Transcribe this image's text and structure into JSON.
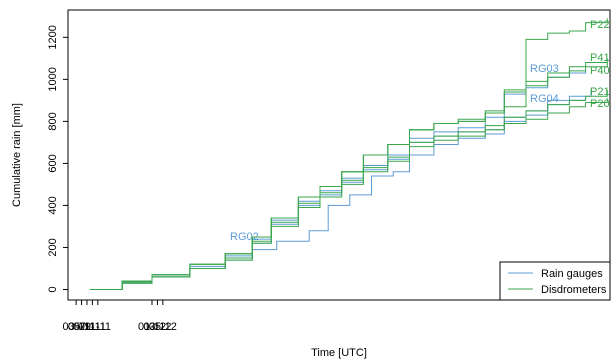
{
  "chart_data": {
    "type": "line",
    "xlabel": "Time [UTC]",
    "ylabel": "Cumulative rain [mm]",
    "x_ticks": [
      "03-11",
      "05-11",
      "07-11",
      "09-11",
      "11-11",
      "01-12",
      "03-12",
      "05-12"
    ],
    "y_ticks": [
      0,
      200,
      400,
      600,
      800,
      1000,
      1200
    ],
    "xlim": [
      "2020-10-31",
      "2021-05-19"
    ],
    "ylim": [
      -50,
      1330
    ],
    "grid": false,
    "legend_position": "bottom-right",
    "legend": [
      {
        "label": "Rain gauges",
        "color": "#5b9bd5"
      },
      {
        "label": "Disdrometers",
        "color": "#3aa64c"
      }
    ],
    "colors": {
      "rain_gauges": "#5b9bd5",
      "disdrometers": "#3aa64c"
    },
    "series": [
      {
        "name": "RG02",
        "group": "rain_gauges",
        "labeled_at": [
          230,
          240
        ],
        "points": [
          [
            "2020-11-08",
            0
          ],
          [
            "2020-11-20",
            30
          ],
          [
            "2020-12-01",
            60
          ],
          [
            "2020-12-15",
            100
          ],
          [
            "2020-12-28",
            140
          ],
          [
            "2021-01-07",
            190
          ],
          [
            "2021-01-16",
            230
          ],
          [
            "2021-01-28",
            280
          ],
          [
            "2021-02-04",
            400
          ],
          [
            "2021-02-12",
            450
          ],
          [
            "2021-02-20",
            540
          ],
          [
            "2021-02-28",
            560
          ],
          [
            "2021-03-06",
            640
          ],
          [
            "2021-03-15",
            690
          ],
          [
            "2021-03-24",
            720
          ],
          [
            "2021-04-03",
            740
          ],
          [
            "2021-04-10",
            800
          ],
          [
            "2021-04-18",
            830
          ],
          [
            "2021-04-26",
            900
          ],
          [
            "2021-05-04",
            920
          ],
          [
            "2021-05-12",
            950
          ]
        ]
      },
      {
        "name": "RG03",
        "group": "rain_gauges",
        "labeled_at": [
          530,
          72
        ],
        "points": [
          [
            "2020-11-08",
            0
          ],
          [
            "2020-11-20",
            40
          ],
          [
            "2020-12-01",
            70
          ],
          [
            "2020-12-15",
            110
          ],
          [
            "2020-12-28",
            160
          ],
          [
            "2021-01-07",
            240
          ],
          [
            "2021-01-14",
            330
          ],
          [
            "2021-01-24",
            420
          ],
          [
            "2021-02-01",
            470
          ],
          [
            "2021-02-09",
            530
          ],
          [
            "2021-02-17",
            590
          ],
          [
            "2021-02-26",
            640
          ],
          [
            "2021-03-06",
            720
          ],
          [
            "2021-03-15",
            750
          ],
          [
            "2021-03-24",
            770
          ],
          [
            "2021-04-03",
            820
          ],
          [
            "2021-04-10",
            930
          ],
          [
            "2021-04-18",
            960
          ],
          [
            "2021-04-26",
            1010
          ],
          [
            "2021-05-04",
            1030
          ],
          [
            "2021-05-10",
            1040
          ]
        ]
      },
      {
        "name": "RG04",
        "group": "rain_gauges",
        "labeled_at": [
          530,
          102
        ],
        "points": [
          [
            "2020-11-08",
            0
          ],
          [
            "2020-11-20",
            35
          ],
          [
            "2020-12-01",
            60
          ],
          [
            "2020-12-15",
            100
          ],
          [
            "2020-12-28",
            150
          ],
          [
            "2021-01-07",
            220
          ],
          [
            "2021-01-14",
            310
          ],
          [
            "2021-01-24",
            400
          ],
          [
            "2021-02-01",
            450
          ],
          [
            "2021-02-09",
            510
          ],
          [
            "2021-02-17",
            570
          ],
          [
            "2021-02-26",
            620
          ],
          [
            "2021-03-06",
            700
          ],
          [
            "2021-03-15",
            730
          ],
          [
            "2021-03-24",
            750
          ],
          [
            "2021-04-03",
            760
          ],
          [
            "2021-04-10",
            820
          ],
          [
            "2021-04-18",
            850
          ],
          [
            "2021-04-26",
            880
          ],
          [
            "2021-05-04",
            900
          ],
          [
            "2021-05-10",
            910
          ]
        ]
      },
      {
        "name": "P22",
        "group": "disdrometers",
        "labeled_at": [
          590,
          28
        ],
        "points": [
          [
            "2020-11-08",
            0
          ],
          [
            "2020-11-20",
            40
          ],
          [
            "2020-12-01",
            70
          ],
          [
            "2020-12-15",
            120
          ],
          [
            "2020-12-28",
            170
          ],
          [
            "2021-01-07",
            250
          ],
          [
            "2021-01-14",
            340
          ],
          [
            "2021-01-24",
            440
          ],
          [
            "2021-02-01",
            490
          ],
          [
            "2021-02-09",
            560
          ],
          [
            "2021-02-17",
            640
          ],
          [
            "2021-02-26",
            690
          ],
          [
            "2021-03-06",
            760
          ],
          [
            "2021-03-15",
            790
          ],
          [
            "2021-03-24",
            800
          ],
          [
            "2021-04-03",
            840
          ],
          [
            "2021-04-10",
            870
          ],
          [
            "2021-04-18",
            1190
          ],
          [
            "2021-04-26",
            1220
          ],
          [
            "2021-05-04",
            1230
          ],
          [
            "2021-05-10",
            1270
          ],
          [
            "2021-05-18",
            1290
          ]
        ]
      },
      {
        "name": "P41",
        "group": "disdrometers",
        "labeled_at": [
          590,
          61
        ],
        "points": [
          [
            "2020-11-08",
            0
          ],
          [
            "2020-11-20",
            40
          ],
          [
            "2020-12-01",
            70
          ],
          [
            "2020-12-15",
            120
          ],
          [
            "2020-12-28",
            170
          ],
          [
            "2021-01-07",
            250
          ],
          [
            "2021-01-14",
            340
          ],
          [
            "2021-01-24",
            440
          ],
          [
            "2021-02-01",
            490
          ],
          [
            "2021-02-09",
            560
          ],
          [
            "2021-02-17",
            640
          ],
          [
            "2021-02-26",
            690
          ],
          [
            "2021-03-06",
            760
          ],
          [
            "2021-03-15",
            790
          ],
          [
            "2021-03-24",
            810
          ],
          [
            "2021-04-03",
            850
          ],
          [
            "2021-04-10",
            950
          ],
          [
            "2021-04-18",
            990
          ],
          [
            "2021-04-26",
            1030
          ],
          [
            "2021-05-04",
            1060
          ],
          [
            "2021-05-10",
            1080
          ],
          [
            "2021-05-18",
            1100
          ]
        ]
      },
      {
        "name": "P40",
        "group": "disdrometers",
        "labeled_at": [
          590,
          74
        ],
        "points": [
          [
            "2020-11-08",
            0
          ],
          [
            "2020-11-20",
            40
          ],
          [
            "2020-12-01",
            70
          ],
          [
            "2020-12-15",
            120
          ],
          [
            "2020-12-28",
            170
          ],
          [
            "2021-01-07",
            250
          ],
          [
            "2021-01-14",
            340
          ],
          [
            "2021-01-24",
            440
          ],
          [
            "2021-02-01",
            490
          ],
          [
            "2021-02-09",
            560
          ],
          [
            "2021-02-17",
            640
          ],
          [
            "2021-02-26",
            690
          ],
          [
            "2021-03-06",
            760
          ],
          [
            "2021-03-15",
            790
          ],
          [
            "2021-03-24",
            800
          ],
          [
            "2021-04-03",
            840
          ],
          [
            "2021-04-10",
            940
          ],
          [
            "2021-04-18",
            970
          ],
          [
            "2021-04-26",
            1010
          ],
          [
            "2021-05-04",
            1040
          ],
          [
            "2021-05-10",
            1060
          ],
          [
            "2021-05-18",
            1080
          ]
        ]
      },
      {
        "name": "P21",
        "group": "disdrometers",
        "labeled_at": [
          590,
          95
        ],
        "points": [
          [
            "2020-11-08",
            0
          ],
          [
            "2020-11-20",
            35
          ],
          [
            "2020-12-01",
            60
          ],
          [
            "2020-12-15",
            100
          ],
          [
            "2020-12-28",
            150
          ],
          [
            "2021-01-07",
            230
          ],
          [
            "2021-01-14",
            320
          ],
          [
            "2021-01-24",
            410
          ],
          [
            "2021-02-01",
            460
          ],
          [
            "2021-02-09",
            520
          ],
          [
            "2021-02-17",
            580
          ],
          [
            "2021-02-26",
            630
          ],
          [
            "2021-03-06",
            700
          ],
          [
            "2021-03-15",
            730
          ],
          [
            "2021-03-24",
            750
          ],
          [
            "2021-04-03",
            780
          ],
          [
            "2021-04-10",
            820
          ],
          [
            "2021-04-18",
            850
          ],
          [
            "2021-04-26",
            880
          ],
          [
            "2021-05-04",
            900
          ],
          [
            "2021-05-10",
            920
          ],
          [
            "2021-05-18",
            950
          ]
        ]
      },
      {
        "name": "P20",
        "group": "disdrometers",
        "labeled_at": [
          590,
          107
        ],
        "points": [
          [
            "2020-11-08",
            0
          ],
          [
            "2020-11-20",
            30
          ],
          [
            "2020-12-01",
            60
          ],
          [
            "2020-12-15",
            100
          ],
          [
            "2020-12-28",
            140
          ],
          [
            "2021-01-07",
            220
          ],
          [
            "2021-01-14",
            300
          ],
          [
            "2021-01-24",
            390
          ],
          [
            "2021-02-01",
            440
          ],
          [
            "2021-02-09",
            500
          ],
          [
            "2021-02-17",
            560
          ],
          [
            "2021-02-26",
            610
          ],
          [
            "2021-03-06",
            680
          ],
          [
            "2021-03-15",
            710
          ],
          [
            "2021-03-24",
            730
          ],
          [
            "2021-04-03",
            760
          ],
          [
            "2021-04-10",
            790
          ],
          [
            "2021-04-18",
            810
          ],
          [
            "2021-04-26",
            840
          ],
          [
            "2021-05-04",
            870
          ],
          [
            "2021-05-10",
            890
          ],
          [
            "2021-05-18",
            910
          ]
        ]
      }
    ]
  }
}
